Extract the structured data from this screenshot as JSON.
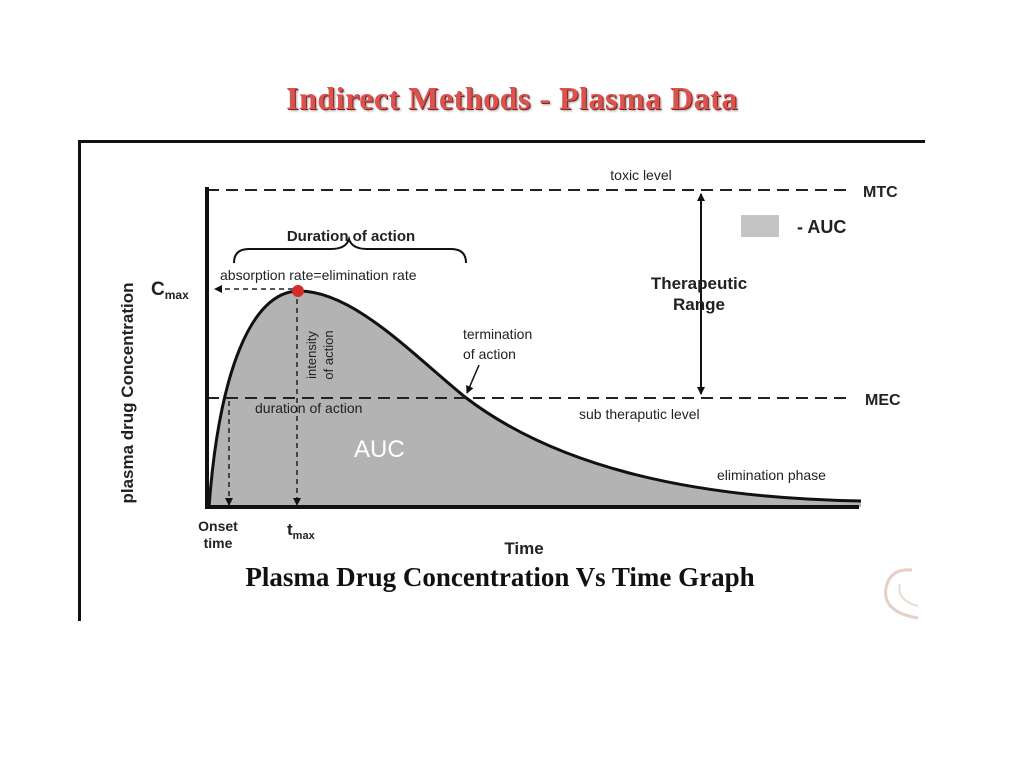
{
  "slide_title": "Indirect Methods - Plasma Data",
  "caption": "Plasma Drug Concentration Vs Time Graph",
  "diagram": {
    "y_axis_label": "plasma drug Concentration",
    "x_axis_label": "Time",
    "cmax_main": "C",
    "cmax_sub": "max",
    "tmax_main": "t",
    "tmax_sub": "max",
    "onset_line1": "Onset",
    "onset_line2": "time",
    "toxic_level": "toxic level",
    "mtc": "MTC",
    "mec": "MEC",
    "sub_therapeutic_level": "sub theraputic level",
    "therapeutic_line1": "Therapeutic",
    "therapeutic_line2": "Range",
    "legend_label": "- AUC",
    "duration_of_action_top": "Duration of action",
    "absorption_rate": "absorption rate=elimination rate",
    "intensity_line1": "intensity",
    "intensity_line2": "of action",
    "termination_line1": "termination",
    "termination_line2": "of action",
    "duration_of_action_mec": "duration of action",
    "auc_label": "AUC",
    "elimination_phase": "elimination phase"
  },
  "colors": {
    "title_red": "#d9534f",
    "auc_fill": "#b3b3b3",
    "legend_fill": "#c4c4c4",
    "peak_marker": "#d62b2b"
  }
}
